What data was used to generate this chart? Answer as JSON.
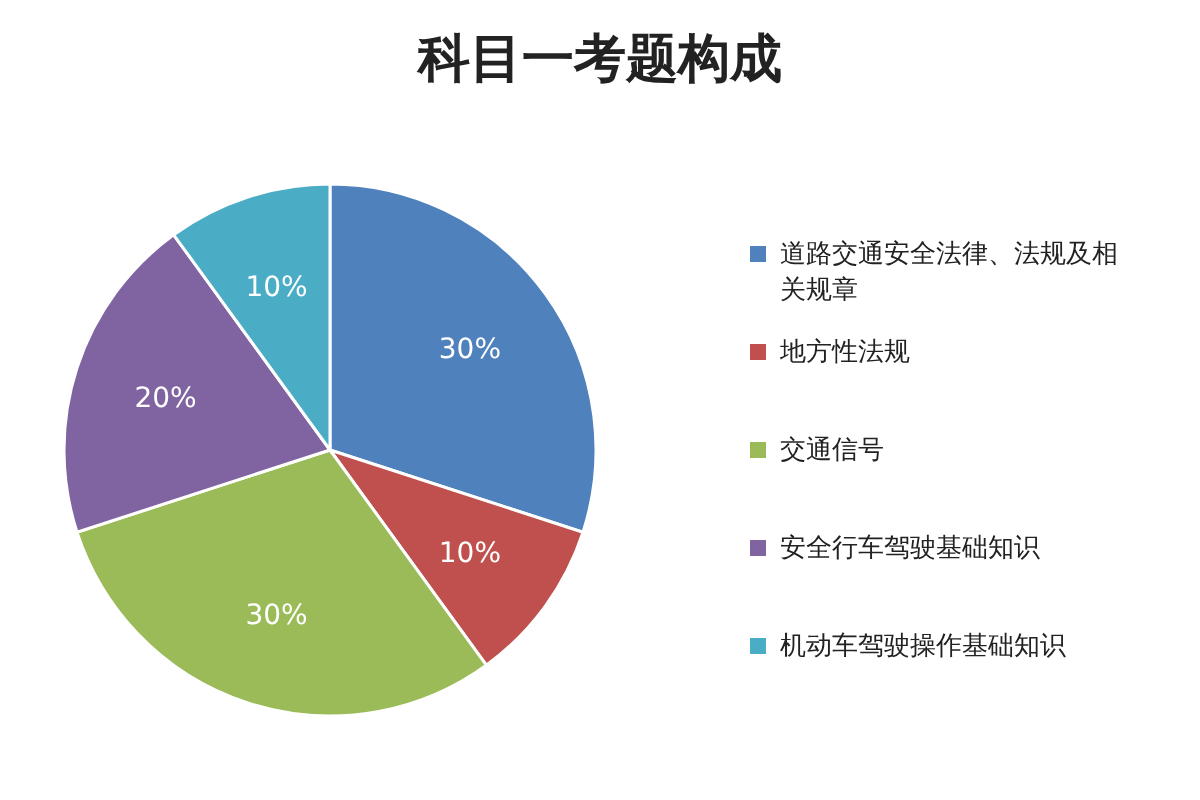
{
  "chart_data": {
    "type": "pie",
    "title": "科目一考题构成",
    "categories": [
      "道路交通安全法律、法规及相关规章",
      "地方性法规",
      "交通信号",
      "安全行车驾驶基础知识",
      "机动车驾驶操作基础知识"
    ],
    "values": [
      30,
      10,
      30,
      20,
      10
    ],
    "colors": [
      "#4f81bd",
      "#c0504d",
      "#9bbb59",
      "#8064a2",
      "#4bacc6"
    ],
    "value_labels": [
      "30%",
      "10%",
      "30%",
      "20%",
      "10%"
    ],
    "legend": "right"
  }
}
